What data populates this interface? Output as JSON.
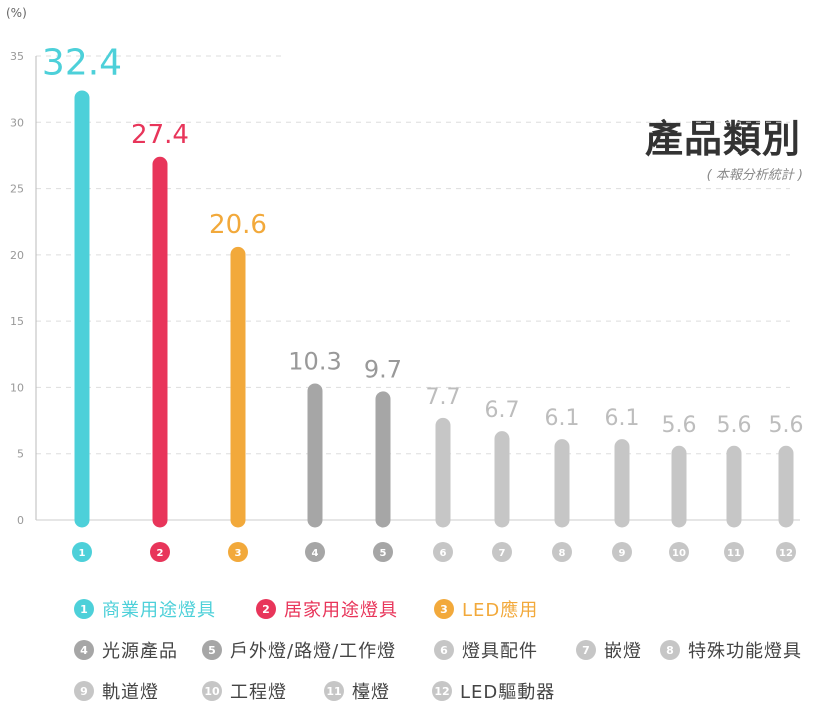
{
  "unit_label": "(%)",
  "title": "產品類別",
  "subtitle": "( 本報分析統計 )",
  "chart_data": {
    "type": "bar",
    "ylim": [
      0,
      35
    ],
    "yticks": [
      0,
      5,
      10,
      15,
      20,
      25,
      30,
      35
    ],
    "grid": true,
    "categories": [
      "1",
      "2",
      "3",
      "4",
      "5",
      "6",
      "7",
      "8",
      "9",
      "10",
      "11",
      "12"
    ],
    "values": [
      32.4,
      27.4,
      20.6,
      10.3,
      9.7,
      7.7,
      6.7,
      6.1,
      6.1,
      5.6,
      5.6,
      5.6
    ],
    "value_labels": [
      "32.4",
      "27.4",
      "20.6",
      "10.3",
      "9.7",
      "7.7",
      "6.7",
      "6.1",
      "6.1",
      "5.6",
      "5.6",
      "5.6"
    ],
    "colors": [
      "#4dd0d9",
      "#e8355a",
      "#f2a93b",
      "#a6a6a6",
      "#a6a6a6",
      "#c6c6c6",
      "#c6c6c6",
      "#c6c6c6",
      "#c6c6c6",
      "#c6c6c6",
      "#c6c6c6",
      "#c6c6c6"
    ],
    "legend": [
      {
        "num": "1",
        "label": "商業用途燈具",
        "color": "#4dd0d9",
        "text_color": "#4dd0d9"
      },
      {
        "num": "2",
        "label": "居家用途燈具",
        "color": "#e8355a",
        "text_color": "#e8355a"
      },
      {
        "num": "3",
        "label": "LED應用",
        "color": "#f2a93b",
        "text_color": "#f2a93b"
      },
      {
        "num": "4",
        "label": "光源產品",
        "color": "#a6a6a6",
        "text_color": "#444444"
      },
      {
        "num": "5",
        "label": "戶外燈/路燈/工作燈",
        "color": "#a6a6a6",
        "text_color": "#444444"
      },
      {
        "num": "6",
        "label": "燈具配件",
        "color": "#c6c6c6",
        "text_color": "#444444"
      },
      {
        "num": "7",
        "label": "嵌燈",
        "color": "#c6c6c6",
        "text_color": "#444444"
      },
      {
        "num": "8",
        "label": "特殊功能燈具",
        "color": "#c6c6c6",
        "text_color": "#444444"
      },
      {
        "num": "9",
        "label": "軌道燈",
        "color": "#c6c6c6",
        "text_color": "#444444"
      },
      {
        "num": "10",
        "label": "工程燈",
        "color": "#c6c6c6",
        "text_color": "#444444"
      },
      {
        "num": "11",
        "label": "檯燈",
        "color": "#c6c6c6",
        "text_color": "#444444"
      },
      {
        "num": "12",
        "label": "LED驅動器",
        "color": "#c6c6c6",
        "text_color": "#444444"
      }
    ]
  }
}
